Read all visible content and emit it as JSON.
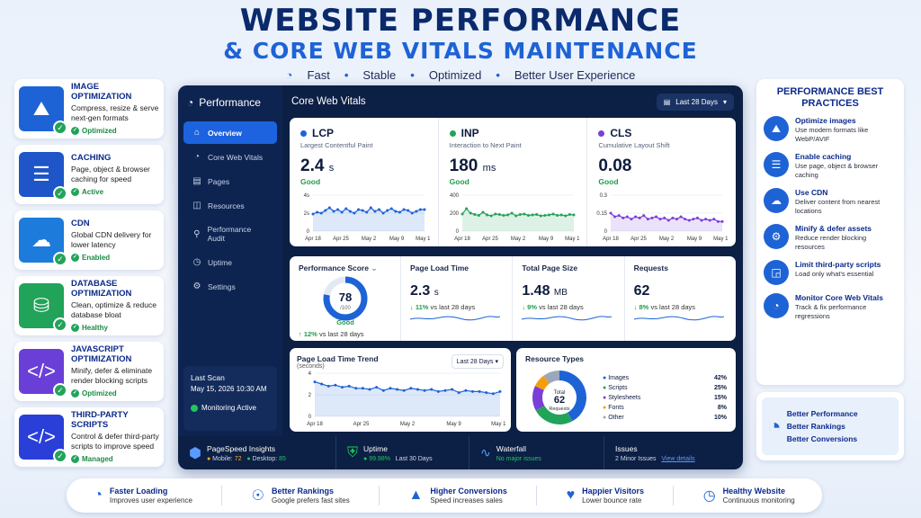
{
  "header": {
    "title": "WEBSITE PERFORMANCE",
    "subtitle": "& CORE WEB VITALS MAINTENANCE",
    "tags": [
      "Fast",
      "Stable",
      "Optimized",
      "Better User Experience"
    ]
  },
  "left_cards": [
    {
      "title": "IMAGE OPTIMIZATION",
      "desc": "Compress, resize & serve next-gen formats",
      "status": "Optimized",
      "color": "#1e63d6"
    },
    {
      "title": "CACHING",
      "desc": "Page, object & browser caching for speed",
      "status": "Active",
      "color": "#1e55c8"
    },
    {
      "title": "CDN",
      "desc": "Global CDN delivery for lower latency",
      "status": "Enabled",
      "color": "#1d7bdc"
    },
    {
      "title": "DATABASE OPTIMIZATION",
      "desc": "Clean, optimize & reduce database bloat",
      "status": "Healthy",
      "color": "#22a35a"
    },
    {
      "title": "JAVASCRIPT OPTIMIZATION",
      "desc": "Minify, defer & eliminate render blocking scripts",
      "status": "Optimized",
      "color": "#6a3fd8"
    },
    {
      "title": "THIRD-PARTY SCRIPTS",
      "desc": "Control & defer third-party scripts to improve speed",
      "status": "Managed",
      "color": "#2a3fd8"
    }
  ],
  "dashboard": {
    "brand": "Performance",
    "nav": [
      "Overview",
      "Core Web Vitals",
      "Pages",
      "Resources",
      "Performance Audit",
      "Uptime",
      "Settings"
    ],
    "last_scan_label": "Last Scan",
    "last_scan_value": "May 15, 2026 10:30 AM",
    "monitoring": "Monitoring Active",
    "section_title": "Core Web Vitals",
    "range": "Last 28 Days",
    "vitals": [
      {
        "name": "LCP",
        "desc": "Largest Contentful Paint",
        "value": "2.4",
        "unit": "s",
        "status": "Good",
        "color": "#1e63d6",
        "yticks": [
          "4s",
          "2s",
          "0"
        ],
        "xticks": [
          "Apr 18",
          "Apr 25",
          "May 2",
          "May 9",
          "May 15"
        ],
        "ymax": 4,
        "series": [
          1.9,
          2.1,
          2.0,
          2.3,
          2.6,
          2.2,
          2.4,
          2.1,
          2.5,
          2.2,
          2.0,
          2.4,
          2.3,
          2.1,
          2.6,
          2.2,
          2.4,
          2.0,
          2.3,
          2.5,
          2.2,
          2.1,
          2.4,
          2.3,
          2.0,
          2.2,
          2.4,
          2.4
        ]
      },
      {
        "name": "INP",
        "desc": "Interaction to Next Paint",
        "value": "180",
        "unit": "ms",
        "status": "Good",
        "color": "#22a35a",
        "yticks": [
          "400",
          "200",
          "0"
        ],
        "xticks": [
          "Apr 18",
          "Apr 25",
          "May 2",
          "May 9",
          "May 15"
        ],
        "ymax": 400,
        "series": [
          190,
          250,
          200,
          185,
          175,
          210,
          180,
          170,
          190,
          185,
          175,
          180,
          200,
          170,
          185,
          190,
          175,
          180,
          185,
          170,
          175,
          180,
          190,
          175,
          180,
          170,
          185,
          180
        ]
      },
      {
        "name": "CLS",
        "desc": "Cumulative Layout Shift",
        "value": "0.08",
        "unit": "",
        "status": "Good",
        "color": "#7a3fd8",
        "yticks": [
          "0.3",
          "0.15",
          "0"
        ],
        "xticks": [
          "Apr 18",
          "Apr 25",
          "May 2",
          "May 9",
          "May 15"
        ],
        "ymax": 0.3,
        "series": [
          0.15,
          0.12,
          0.13,
          0.11,
          0.12,
          0.1,
          0.12,
          0.11,
          0.13,
          0.1,
          0.11,
          0.12,
          0.1,
          0.11,
          0.09,
          0.11,
          0.1,
          0.12,
          0.1,
          0.09,
          0.1,
          0.11,
          0.09,
          0.1,
          0.09,
          0.1,
          0.08,
          0.08
        ]
      }
    ],
    "score": {
      "label": "Performance Score",
      "value": "78",
      "of": "/100",
      "status": "Good",
      "fraction": 0.78,
      "change_pct": "12%",
      "change_text": "vs last 28 days"
    },
    "stats": [
      {
        "label": "Page Load Time",
        "value": "2.3",
        "unit": "s",
        "change_pct": "11%",
        "change_text": "vs last 28 days"
      },
      {
        "label": "Total Page Size",
        "value": "1.48",
        "unit": "MB",
        "change_pct": "9%",
        "change_text": "vs last 28 days"
      },
      {
        "label": "Requests",
        "value": "62",
        "unit": "",
        "change_pct": "8%",
        "change_text": "vs last 28 days"
      }
    ],
    "trend": {
      "title": "Page Load Time Trend",
      "sub": "(seconds)",
      "range": "Last 28 Days",
      "yticks": [
        "4",
        "2",
        "0"
      ],
      "xticks": [
        "Apr 18",
        "Apr 25",
        "May 2",
        "May 9",
        "May 15"
      ],
      "ymax": 4,
      "series": [
        3.2,
        3.0,
        2.8,
        2.9,
        2.7,
        2.8,
        2.6,
        2.6,
        2.5,
        2.7,
        2.4,
        2.6,
        2.5,
        2.4,
        2.6,
        2.5,
        2.4,
        2.5,
        2.3,
        2.4,
        2.5,
        2.2,
        2.4,
        2.3,
        2.3,
        2.2,
        2.1,
        2.3
      ]
    },
    "resources": {
      "title": "Resource Types",
      "total_label": "Total",
      "total": "62",
      "total_unit": "Requests",
      "items": [
        {
          "name": "Images",
          "pct": "42%",
          "value": 42,
          "color": "#1e63d6"
        },
        {
          "name": "Scripts",
          "pct": "25%",
          "value": 25,
          "color": "#22a35a"
        },
        {
          "name": "Stylesheets",
          "pct": "15%",
          "value": 15,
          "color": "#7a3fd8"
        },
        {
          "name": "Fonts",
          "pct": "8%",
          "value": 8,
          "color": "#f59e0b"
        },
        {
          "name": "Other",
          "pct": "10%",
          "value": 10,
          "color": "#9aa7bd"
        }
      ]
    },
    "bottom": {
      "psi_title": "PageSpeed Insights",
      "mobile_label": "Mobile:",
      "mobile": "72",
      "desktop_label": "Desktop:",
      "desktop": "85",
      "uptime_title": "Uptime",
      "uptime_value": "99.98%",
      "uptime_period": "Last 30 Days",
      "waterfall_title": "Waterfall",
      "waterfall_value": "No major issues",
      "issues_title": "Issues",
      "issues_value": "2 Minor Issues",
      "issues_link": "View details"
    }
  },
  "best_practices": {
    "title": "PERFORMANCE BEST PRACTICES",
    "items": [
      {
        "title": "Optimize images",
        "desc": "Use modern formats like WebP/AVIF"
      },
      {
        "title": "Enable caching",
        "desc": "Use page, object & browser caching"
      },
      {
        "title": "Use CDN",
        "desc": "Deliver content from nearest locations"
      },
      {
        "title": "Minify & defer assets",
        "desc": "Reduce render blocking resources"
      },
      {
        "title": "Limit third-party scripts",
        "desc": "Load only what's essential"
      },
      {
        "title": "Monitor Core Web Vitals",
        "desc": "Track & fix performance regressions"
      }
    ],
    "outcomes": [
      "Better Performance",
      "Better Rankings",
      "Better Conversions"
    ]
  },
  "footer": [
    {
      "title": "Faster Loading",
      "desc": "Improves user experience",
      "icon": "speedometer-icon"
    },
    {
      "title": "Better Rankings",
      "desc": "Google prefers fast sites",
      "icon": "rank-icon"
    },
    {
      "title": "Higher Conversions",
      "desc": "Speed increases sales",
      "icon": "chart-icon"
    },
    {
      "title": "Happier Visitors",
      "desc": "Lower bounce rate",
      "icon": "heart-icon"
    },
    {
      "title": "Healthy Website",
      "desc": "Continuous monitoring",
      "icon": "clock-icon"
    }
  ]
}
